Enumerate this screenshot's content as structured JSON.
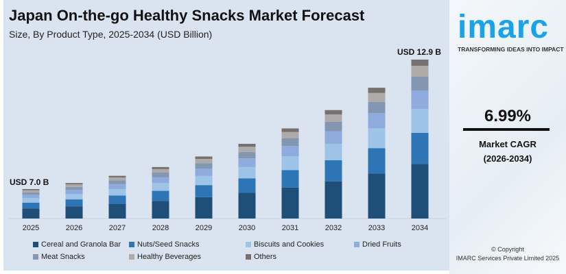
{
  "chart_data": {
    "type": "bar",
    "stacked": true,
    "title": "Japan On-the-go Healthy Snacks Market Forecast",
    "subtitle": "Size, By Product Type, 2025-2034 (USD Billion)",
    "xlabel": "",
    "ylabel": "",
    "categories": [
      "2025",
      "2026",
      "2027",
      "2028",
      "2029",
      "2030",
      "2031",
      "2032",
      "2033",
      "2034"
    ],
    "totals": [
      7.0,
      7.49,
      8.01,
      8.57,
      9.17,
      9.81,
      10.5,
      11.23,
      12.02,
      12.9
    ],
    "series": [
      {
        "name": "Cereal and Granola Bar",
        "color": "#1f4e79",
        "values": [
          2.4,
          2.57,
          2.75,
          2.94,
          3.15,
          3.37,
          3.6,
          3.85,
          4.12,
          4.43
        ]
      },
      {
        "name": "Nuts/Seed Snacks",
        "color": "#2e75b6",
        "values": [
          1.37,
          1.46,
          1.56,
          1.67,
          1.79,
          1.91,
          2.05,
          2.19,
          2.35,
          2.52
        ]
      },
      {
        "name": "Biscuits and Cookies",
        "color": "#9dc3e6",
        "values": [
          1.06,
          1.13,
          1.21,
          1.3,
          1.39,
          1.48,
          1.59,
          1.7,
          1.82,
          1.95
        ]
      },
      {
        "name": "Dried Fruits",
        "color": "#8faadc",
        "values": [
          0.81,
          0.87,
          0.93,
          0.99,
          1.06,
          1.14,
          1.22,
          1.3,
          1.39,
          1.5
        ]
      },
      {
        "name": "Meat Snacks",
        "color": "#8497b0",
        "values": [
          0.6,
          0.64,
          0.69,
          0.74,
          0.79,
          0.84,
          0.9,
          0.97,
          1.03,
          1.11
        ]
      },
      {
        "name": "Healthy Beverages",
        "color": "#aeaaaa",
        "values": [
          0.48,
          0.52,
          0.55,
          0.59,
          0.63,
          0.68,
          0.72,
          0.77,
          0.83,
          0.89
        ]
      },
      {
        "name": "Others",
        "color": "#767171",
        "values": [
          0.28,
          0.3,
          0.32,
          0.34,
          0.36,
          0.39,
          0.42,
          0.45,
          0.48,
          0.5
        ]
      }
    ],
    "annotations": [
      "USD 7.0 B",
      "USD 12.9 B"
    ],
    "grid": false,
    "legend": "bottom"
  },
  "side": {
    "logo": "imarc",
    "tagline": "TRANSFORMING IDEAS INTO IMPACT",
    "cagr_value": "6.99%",
    "cagr_label": "Market CAGR",
    "cagr_period": "(2026-2034)",
    "copyright": "© Copyright",
    "company": "IMARC Services Private Limited 2025"
  }
}
